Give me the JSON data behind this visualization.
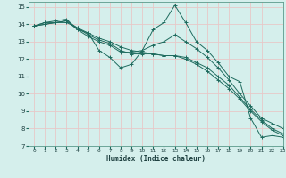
{
  "xlabel": "Humidex (Indice chaleur)",
  "ylabel": "",
  "xlim": [
    -0.5,
    23
  ],
  "ylim": [
    7,
    15.3
  ],
  "yticks": [
    7,
    8,
    9,
    10,
    11,
    12,
    13,
    14,
    15
  ],
  "xticks": [
    0,
    1,
    2,
    3,
    4,
    5,
    6,
    7,
    8,
    9,
    10,
    11,
    12,
    13,
    14,
    15,
    16,
    17,
    18,
    19,
    20,
    21,
    22,
    23
  ],
  "background_color": "#d5efec",
  "grid_color": "#e8c8c8",
  "line_color": "#1e6b5e",
  "series": [
    [
      13.9,
      14.1,
      14.2,
      14.3,
      13.7,
      13.5,
      12.5,
      12.1,
      11.5,
      11.7,
      12.5,
      13.7,
      14.1,
      15.1,
      14.1,
      13.0,
      12.5,
      11.8,
      11.0,
      10.7,
      8.6,
      7.5,
      7.6,
      7.5
    ],
    [
      13.9,
      14.1,
      14.1,
      14.2,
      13.7,
      13.3,
      13.0,
      12.8,
      12.4,
      12.4,
      12.5,
      12.8,
      13.0,
      13.4,
      13.0,
      12.6,
      12.1,
      11.5,
      10.8,
      10.0,
      9.3,
      8.6,
      8.3,
      8.0
    ],
    [
      13.9,
      14.0,
      14.1,
      14.1,
      13.8,
      13.5,
      13.2,
      13.0,
      12.7,
      12.5,
      12.4,
      12.3,
      12.2,
      12.2,
      12.1,
      11.8,
      11.5,
      11.0,
      10.5,
      9.8,
      9.1,
      8.5,
      8.0,
      7.7
    ],
    [
      13.9,
      14.0,
      14.1,
      14.2,
      13.8,
      13.4,
      13.1,
      12.9,
      12.5,
      12.3,
      12.3,
      12.3,
      12.2,
      12.2,
      12.0,
      11.7,
      11.3,
      10.8,
      10.3,
      9.7,
      9.0,
      8.4,
      7.9,
      7.6
    ]
  ]
}
